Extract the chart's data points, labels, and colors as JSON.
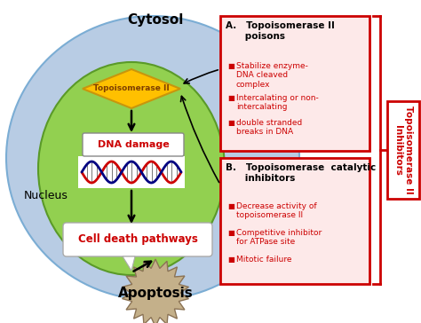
{
  "cytosol_label": "Cytosol",
  "nucleus_label": "Nucleus",
  "topo_label": "Topoisomerase II",
  "dna_damage_label": "DNA damage",
  "cell_death_label": "Cell death pathways",
  "apoptosis_label": "Apoptosis",
  "side_label": "Topoisomerase II\nInhibitors",
  "box_a_title": "A.   Topoisomerase II\n      poisons",
  "box_a_bullet1": "Stabilize enzyme-\nDNA cleaved\ncomplex",
  "box_a_bullet2": "Intercalating or non-\nintercalating",
  "box_a_bullet3": "double stranded\nbreaks in DNA",
  "box_b_title": "B.   Topoisomerase  catalytic\n      inhibitors",
  "box_b_bullet1": "Decrease activity of\ntopoisomerase II",
  "box_b_bullet2": "Competitive inhibitor\nfor ATPase site",
  "box_b_bullet3": "Mitotic failure",
  "cytosol_color": "#b8cce4",
  "cytosol_edge": "#7badd4",
  "nucleus_color": "#92d050",
  "nucleus_edge": "#5a9a28",
  "topo_fill": "#ffc000",
  "topo_edge": "#c8960c",
  "topo_text": "#7f3f00",
  "dna_box_edge": "#888888",
  "cell_box_edge": "#aaaaaa",
  "apoptosis_fill": "#c4b08a",
  "apoptosis_edge": "#8b7355",
  "box_border": "#cc0000",
  "box_fill": "#fde9e9",
  "bullet_color": "#cc0000",
  "title_color": "#000000",
  "side_color": "#cc0000",
  "arrow_color": "#000000",
  "bg_color": "#ffffff",
  "red_text": "#cc0000"
}
